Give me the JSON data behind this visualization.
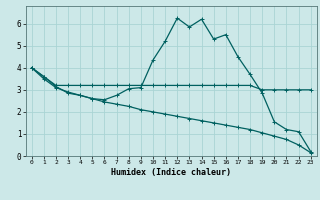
{
  "title": "",
  "xlabel": "Humidex (Indice chaleur)",
  "bg_color": "#cce8e8",
  "line_color": "#006060",
  "grid_color": "#aad4d4",
  "xlim": [
    -0.5,
    23.5
  ],
  "ylim": [
    0,
    6.8
  ],
  "xticks": [
    0,
    1,
    2,
    3,
    4,
    5,
    6,
    7,
    8,
    9,
    10,
    11,
    12,
    13,
    14,
    15,
    16,
    17,
    18,
    19,
    20,
    21,
    22,
    23
  ],
  "yticks": [
    0,
    1,
    2,
    3,
    4,
    5,
    6
  ],
  "line1_x": [
    0,
    1,
    2,
    3,
    4,
    5,
    6,
    7,
    8,
    9,
    10,
    11,
    12,
    13,
    14,
    15,
    16,
    17,
    18,
    19,
    20,
    21,
    22,
    23
  ],
  "line1_y": [
    4.0,
    3.6,
    3.2,
    3.2,
    3.2,
    3.2,
    3.2,
    3.2,
    3.2,
    3.2,
    3.2,
    3.2,
    3.2,
    3.2,
    3.2,
    3.2,
    3.2,
    3.2,
    3.2,
    3.0,
    3.0,
    3.0,
    3.0,
    3.0
  ],
  "line2_x": [
    0,
    1,
    2,
    3,
    4,
    5,
    6,
    7,
    8,
    9,
    10,
    11,
    12,
    13,
    14,
    15,
    16,
    17,
    18,
    19,
    20,
    21,
    22,
    23
  ],
  "line2_y": [
    4.0,
    3.6,
    3.15,
    2.85,
    2.75,
    2.6,
    2.55,
    2.75,
    3.05,
    3.1,
    4.35,
    5.2,
    6.25,
    5.85,
    6.2,
    5.3,
    5.5,
    4.5,
    3.7,
    2.85,
    1.55,
    1.2,
    1.1,
    0.2
  ],
  "line3_x": [
    0,
    1,
    2,
    3,
    4,
    5,
    6,
    7,
    8,
    9,
    10,
    11,
    12,
    13,
    14,
    15,
    16,
    17,
    18,
    19,
    20,
    21,
    22,
    23
  ],
  "line3_y": [
    4.0,
    3.5,
    3.1,
    2.9,
    2.75,
    2.6,
    2.45,
    2.35,
    2.25,
    2.1,
    2.0,
    1.9,
    1.8,
    1.7,
    1.6,
    1.5,
    1.4,
    1.3,
    1.2,
    1.05,
    0.9,
    0.75,
    0.5,
    0.15
  ]
}
